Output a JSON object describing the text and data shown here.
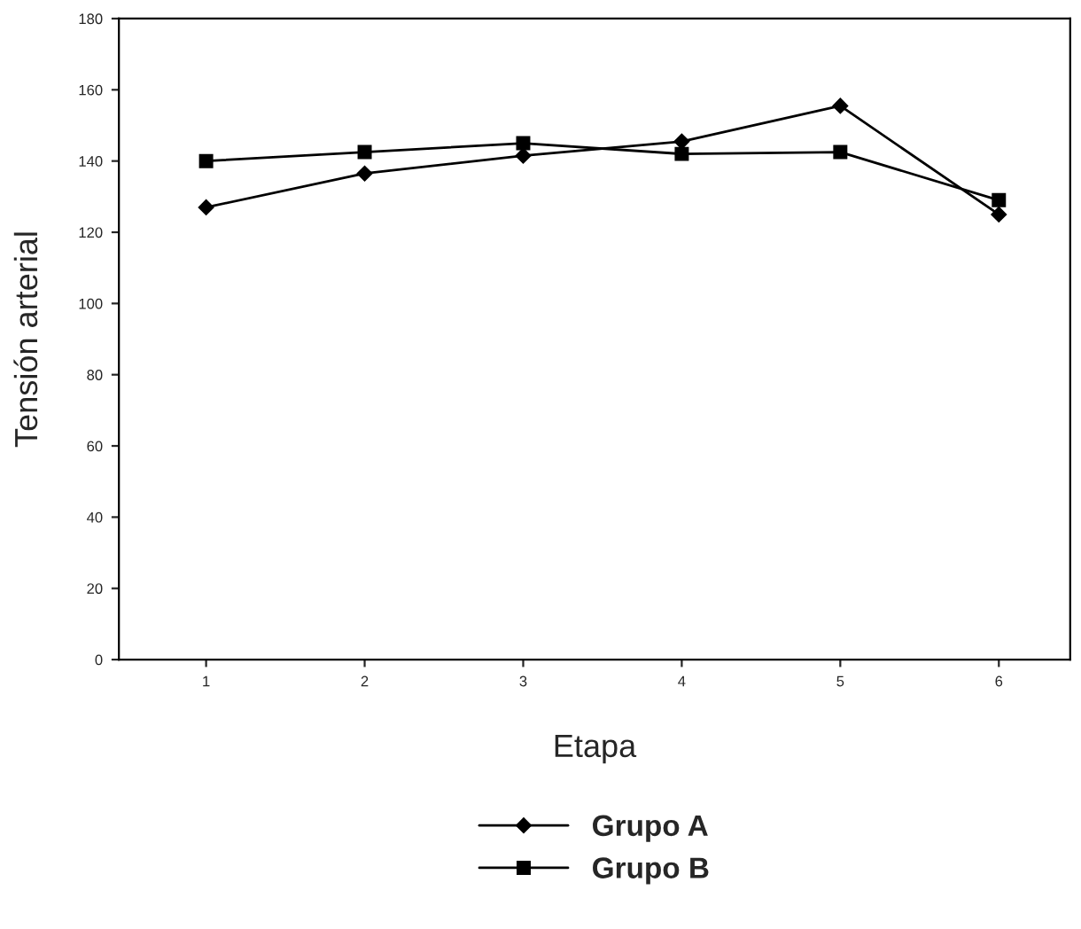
{
  "chart_data": {
    "type": "line",
    "xlabel": "Etapa",
    "ylabel": "Tensión arterial",
    "x": [
      1,
      2,
      3,
      4,
      5,
      6
    ],
    "xlim": [
      0.45,
      6.45
    ],
    "xticks": [
      1,
      2,
      3,
      4,
      5,
      6
    ],
    "ylim": [
      0,
      180
    ],
    "yticks": [
      0,
      20,
      40,
      60,
      80,
      100,
      120,
      140,
      160,
      180
    ],
    "grid": false,
    "legend": "bottom",
    "line_style": "solid",
    "series": [
      {
        "name": "Grupo A",
        "color": "#000000",
        "marker": "diamond",
        "values": [
          127,
          136.5,
          141.5,
          145.5,
          155.5,
          125
        ]
      },
      {
        "name": "Grupo B",
        "color": "#000000",
        "marker": "square",
        "values": [
          140,
          142.5,
          145,
          142,
          142.5,
          129
        ]
      }
    ]
  }
}
